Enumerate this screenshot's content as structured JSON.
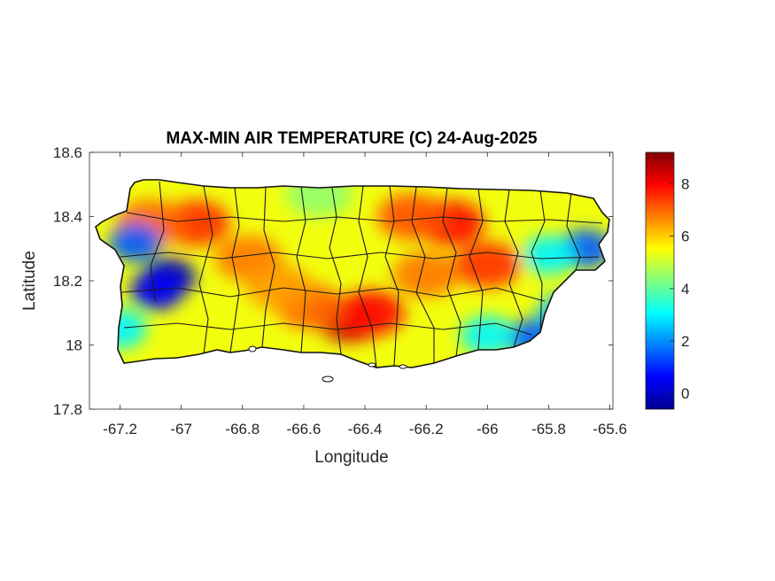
{
  "title": "MAX-MIN AIR TEMPERATURE (C) 24-Aug-2025",
  "chart_data": {
    "type": "heatmap",
    "title": "MAX-MIN AIR TEMPERATURE (C) 24-Aug-2025",
    "xlabel": "Longitude",
    "ylabel": "Latitude",
    "xlim": [
      -67.3,
      -65.59
    ],
    "ylim": [
      17.8,
      18.6
    ],
    "x_ticks": [
      -67.2,
      -67,
      -66.8,
      -66.6,
      -66.4,
      -66.2,
      -66,
      -65.8,
      -65.6
    ],
    "x_tick_labels": [
      "-67.2",
      "-67",
      "-66.8",
      "-66.6",
      "-66.4",
      "-66.2",
      "-66",
      "-65.8",
      "-65.6"
    ],
    "y_ticks": [
      17.8,
      18,
      18.2,
      18.4,
      18.6
    ],
    "y_tick_labels": [
      "17.8",
      "18",
      "18.2",
      "18.4",
      "18.6"
    ],
    "colorbar": {
      "colormap": "jet",
      "range": [
        -0.6,
        9.2
      ],
      "ticks": [
        0,
        2,
        4,
        6,
        8
      ],
      "tick_labels": [
        "0",
        "2",
        "4",
        "6",
        "8"
      ],
      "placement": "right"
    },
    "field_hotspots": [
      {
        "lon": -66.45,
        "lat": 18.08,
        "value": 8.5
      },
      {
        "lon": -66.38,
        "lat": 18.1,
        "value": 7.8
      },
      {
        "lon": -66.58,
        "lat": 18.12,
        "value": 7.0
      },
      {
        "lon": -66.12,
        "lat": 18.38,
        "value": 7.8
      },
      {
        "lon": -66.25,
        "lat": 18.4,
        "value": 7.2
      },
      {
        "lon": -66.0,
        "lat": 18.25,
        "value": 7.5
      },
      {
        "lon": -66.2,
        "lat": 18.22,
        "value": 6.8
      },
      {
        "lon": -66.95,
        "lat": 18.38,
        "value": 7.5
      },
      {
        "lon": -67.1,
        "lat": 18.38,
        "value": 7.0
      },
      {
        "lon": -66.78,
        "lat": 18.27,
        "value": 6.8
      },
      {
        "lon": -66.68,
        "lat": 18.18,
        "value": 6.5
      },
      {
        "lon": -67.04,
        "lat": 18.21,
        "value": 0.0
      },
      {
        "lon": -67.08,
        "lat": 18.17,
        "value": 0.5
      },
      {
        "lon": -67.15,
        "lat": 18.32,
        "value": 1.5
      },
      {
        "lon": -67.2,
        "lat": 18.05,
        "value": 3.0
      },
      {
        "lon": -65.68,
        "lat": 18.3,
        "value": 1.5
      },
      {
        "lon": -65.8,
        "lat": 18.28,
        "value": 3.0
      },
      {
        "lon": -65.85,
        "lat": 18.02,
        "value": 1.5
      },
      {
        "lon": -65.75,
        "lat": 18.1,
        "value": 2.5
      },
      {
        "lon": -66.0,
        "lat": 18.03,
        "value": 3.0
      },
      {
        "lon": -66.55,
        "lat": 18.47,
        "value": 4.5
      }
    ],
    "background_value": 5.4,
    "grid": false,
    "map_outline": "Puerto Rico municipal boundaries"
  }
}
